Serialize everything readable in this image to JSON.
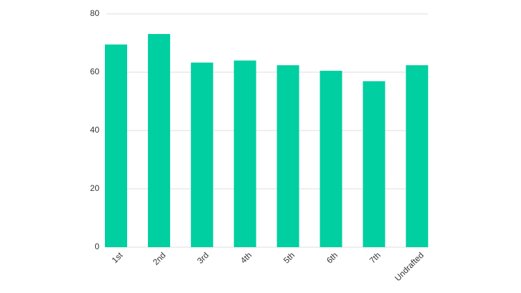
{
  "chart_data": {
    "type": "bar",
    "categories": [
      "1st",
      "2nd",
      "3rd",
      "4th",
      "5th",
      "6th",
      "7th",
      "Undrafted"
    ],
    "values": [
      69.5,
      73.1,
      63.3,
      64.0,
      62.4,
      60.5,
      56.9,
      62.4
    ],
    "color": "#00cfa1",
    "ylim": [
      0,
      80
    ],
    "yticks": [
      0,
      20,
      40,
      60,
      80
    ],
    "grid": true
  }
}
